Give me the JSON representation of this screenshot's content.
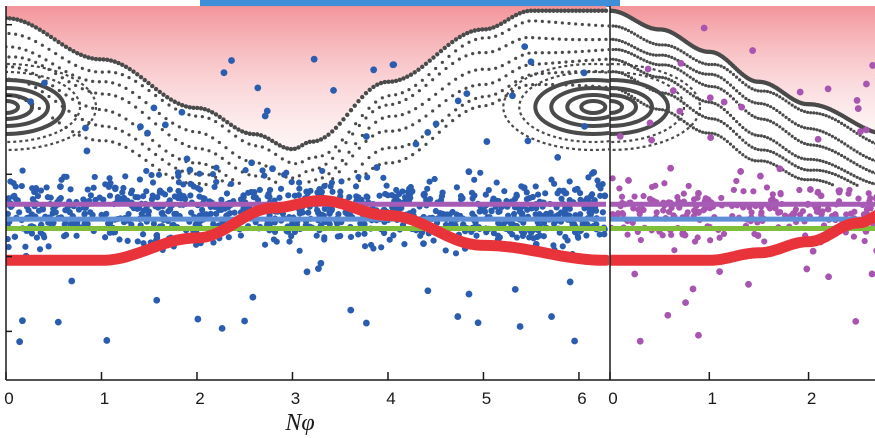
{
  "chart_data": [
    {
      "type": "scatter",
      "title": "",
      "xlabel": "Nφ",
      "ylabel": "",
      "xlim": [
        0,
        6.2832
      ],
      "ylim": [
        0,
        1
      ],
      "x_ticks": [
        "0",
        "1",
        "2",
        "3",
        "4",
        "5",
        "6"
      ],
      "grid": false,
      "background_region": {
        "description_color": "#f28f95",
        "boundary_series": {
          "x": [
            0,
            1.0,
            2.0,
            2.6,
            3.0,
            3.2,
            4.0,
            5.0,
            5.5,
            6.2832
          ],
          "y": [
            0.97,
            0.86,
            0.73,
            0.66,
            0.62,
            0.64,
            0.8,
            0.94,
            0.99,
            0.99
          ]
        }
      },
      "series": [
        {
          "color": "#4a4a4a",
          "kind": "separatrix_and_islands",
          "island_centers": [
            {
              "x": 0.0,
              "y": 0.73
            },
            {
              "x": 6.15,
              "y": 0.73
            }
          ],
          "island_radii_x": [
            0.55,
            0.85,
            1.15,
            1.45,
            1.75
          ],
          "island_radii_y": [
            0.055,
            0.075,
            0.095,
            0.115,
            0.135
          ]
        },
        {
          "color": "#2a5db0",
          "kind": "scatter",
          "band_y": [
            0.28,
            0.62
          ],
          "sparse_y": [
            0.1,
            0.9
          ]
        },
        {
          "color": "#e8333a",
          "kind": "curve",
          "x": [
            0,
            1.0,
            2.0,
            2.8,
            3.3,
            4.0,
            5.0,
            6.2832
          ],
          "y": [
            0.32,
            0.32,
            0.38,
            0.46,
            0.48,
            0.44,
            0.36,
            0.32
          ]
        }
      ],
      "reference_lines": [
        {
          "color": "#a65bb5",
          "y": 0.47
        },
        {
          "color": "#5e8fd6",
          "y": 0.43
        },
        {
          "color": "#7fbf3a",
          "y": 0.405
        }
      ]
    },
    {
      "type": "scatter",
      "title": "",
      "xlabel": "",
      "xlim": [
        0,
        2.8
      ],
      "ylim": [
        0,
        1
      ],
      "x_ticks": [
        "0",
        "1",
        "2"
      ],
      "grid": false,
      "background_region": {
        "description_color": "#f28f95",
        "boundary_series": {
          "x": [
            0,
            0.5,
            1.0,
            1.5,
            2.0,
            2.8
          ],
          "y": [
            0.99,
            0.94,
            0.88,
            0.8,
            0.74,
            0.66
          ]
        }
      },
      "series": [
        {
          "color": "#4a4a4a",
          "kind": "separatrix_and_islands",
          "island_centers": [
            {
              "x": 0.0,
              "y": 0.73
            }
          ]
        },
        {
          "color": "#a755b0",
          "kind": "scatter",
          "band_y": [
            0.3,
            0.6
          ],
          "sparse_y": [
            0.1,
            0.95
          ]
        },
        {
          "color": "#e8333a",
          "kind": "curve",
          "x": [
            0,
            0.5,
            1.0,
            1.5,
            2.0,
            2.5,
            2.8
          ],
          "y": [
            0.32,
            0.32,
            0.32,
            0.34,
            0.37,
            0.42,
            0.45
          ]
        }
      ],
      "reference_lines": [
        {
          "color": "#a65bb5",
          "y": 0.47
        },
        {
          "color": "#5e8fd6",
          "y": 0.43
        },
        {
          "color": "#7fbf3a",
          "y": 0.405
        }
      ]
    }
  ]
}
